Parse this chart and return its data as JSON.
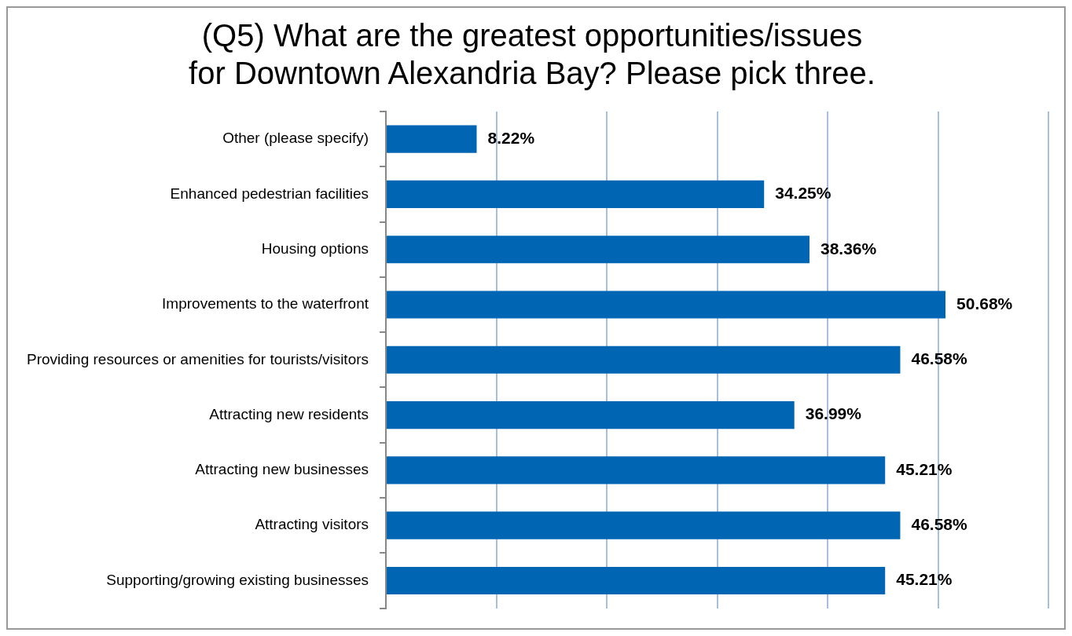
{
  "chart_data": {
    "type": "bar",
    "orientation": "horizontal",
    "title": "(Q5) What are the greatest opportunities/issues\nfor Downtown Alexandria Bay? Please pick three.",
    "categories": [
      "Other (please specify)",
      "Enhanced pedestrian facilities",
      "Housing options",
      "Improvements to the waterfront",
      "Providing resources or amenities for tourists/visitors",
      "Attracting new residents",
      "Attracting new businesses",
      "Attracting visitors",
      "Supporting/growing existing businesses"
    ],
    "values": [
      8.22,
      34.25,
      38.36,
      50.68,
      46.58,
      36.99,
      45.21,
      46.58,
      45.21
    ],
    "value_labels": [
      "8.22%",
      "34.25%",
      "38.36%",
      "50.68%",
      "46.58%",
      "36.99%",
      "45.21%",
      "46.58%",
      "45.21%"
    ],
    "color": "#0066b3",
    "xlim": [
      0,
      60
    ],
    "xticks": [
      {
        "value": 0,
        "label": null
      },
      {
        "value": 10,
        "label": null
      },
      {
        "value": 20,
        "label": null
      },
      {
        "value": 30,
        "label": null
      },
      {
        "value": 40,
        "label": null
      },
      {
        "value": 50,
        "label": null
      },
      {
        "value": 60,
        "label": null
      }
    ],
    "tick_labels": "y",
    "grid": "x",
    "legend": false
  }
}
